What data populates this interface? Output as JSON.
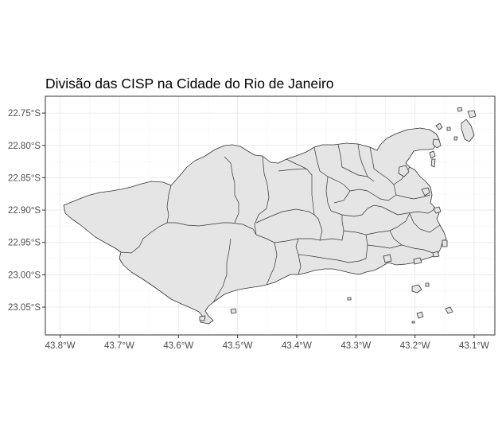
{
  "title": "Divisão das CISP na Cidade do Rio de Janeiro",
  "map": {
    "fill_color": "#e5e5e5",
    "border_color": "#333333",
    "grid": true
  },
  "chart_data": {
    "type": "map",
    "title": "Divisão das CISP na Cidade do Rio de Janeiro",
    "xlim": [
      -43.825,
      -43.065
    ],
    "ylim": [
      -23.093,
      -22.724
    ],
    "x_ticks": [
      -43.8,
      -43.7,
      -43.6,
      -43.5,
      -43.4,
      -43.3,
      -43.2,
      -43.1
    ],
    "x_tick_labels": [
      "43.8°W",
      "43.7°W",
      "43.6°W",
      "43.5°W",
      "43.4°W",
      "43.3°W",
      "43.2°W",
      "43.1°W"
    ],
    "y_ticks": [
      -22.75,
      -22.8,
      -22.85,
      -22.9,
      -22.95,
      -23.0,
      -23.05
    ],
    "y_tick_labels": [
      "22.75°S",
      "22.80°S",
      "22.85°S",
      "22.90°S",
      "22.95°S",
      "23.00°S",
      "23.05°S"
    ]
  }
}
